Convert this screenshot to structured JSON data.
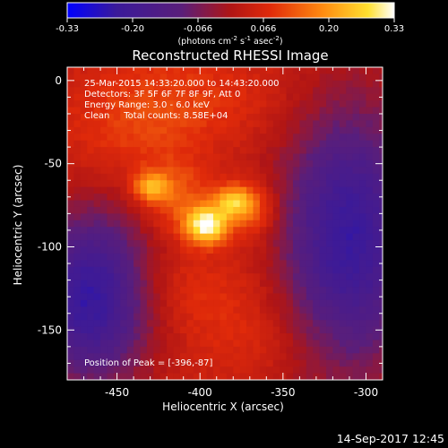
{
  "colorbar": {
    "ticks": [
      "-0.33",
      "-0.20",
      "-0.066",
      "0.066",
      "0.20",
      "0.33"
    ],
    "unit_main": "(photons cm",
    "unit_sup1": "-2",
    "unit_s": " s",
    "unit_sup2": "-1",
    "unit_asec": " asec",
    "unit_sup3": "-2",
    "unit_close": ")"
  },
  "chart_data": {
    "type": "heatmap",
    "title": "Reconstructed RHESSI Image",
    "xlabel": "Heliocentric X (arcsec)",
    "ylabel": "Heliocentric Y (arcsec)",
    "xlim": [
      -480,
      -290
    ],
    "ylim": [
      -180,
      8
    ],
    "xticks": [
      -450,
      -400,
      -350,
      -300
    ],
    "yticks": [
      0,
      -50,
      -100,
      -150
    ],
    "xtick_labels": [
      "-450",
      "-400",
      "-350",
      "-300"
    ],
    "ytick_labels": [
      "0",
      "-50",
      "-100",
      "-150"
    ],
    "clim": [
      -0.33,
      0.33
    ],
    "colormap": "rainbow-hot (blue-purple-red-orange-yellow-white)",
    "peak": {
      "x": -396,
      "y": -87,
      "value": 0.33
    },
    "sources": [
      {
        "x": -396,
        "y": -87,
        "sx": 9,
        "sy": 8,
        "amp": 0.3
      },
      {
        "x": -380,
        "y": -73,
        "sx": 8,
        "sy": 7,
        "amp": 0.19
      },
      {
        "x": -430,
        "y": -64,
        "sx": 7,
        "sy": 6,
        "amp": 0.16
      },
      {
        "x": -368,
        "y": -78,
        "sx": 10,
        "sy": 12,
        "amp": 0.11
      },
      {
        "x": -415,
        "y": -70,
        "sx": 14,
        "sy": 14,
        "amp": 0.1
      },
      {
        "x": -440,
        "y": -30,
        "sx": 30,
        "sy": 25,
        "amp": 0.06
      },
      {
        "x": -400,
        "y": -10,
        "sx": 40,
        "sy": 20,
        "amp": 0.05
      },
      {
        "x": -410,
        "y": -125,
        "sx": 35,
        "sy": 18,
        "amp": 0.05
      },
      {
        "x": -370,
        "y": -155,
        "sx": 30,
        "sy": 18,
        "amp": 0.04
      }
    ],
    "annotations": [
      "25-Mar-2015 14:33:20.000 to 14:43:20.000",
      "Detectors: 3F 5F 6F 7F 8F 9F, Att 0",
      "Energy Range: 3.0 - 6.0 keV",
      "Clean     Total counts: 8.58E+04"
    ],
    "peak_label": "Position of Peak = [-396,-87]"
  },
  "timestamp": "14-Sep-2017 12:45"
}
